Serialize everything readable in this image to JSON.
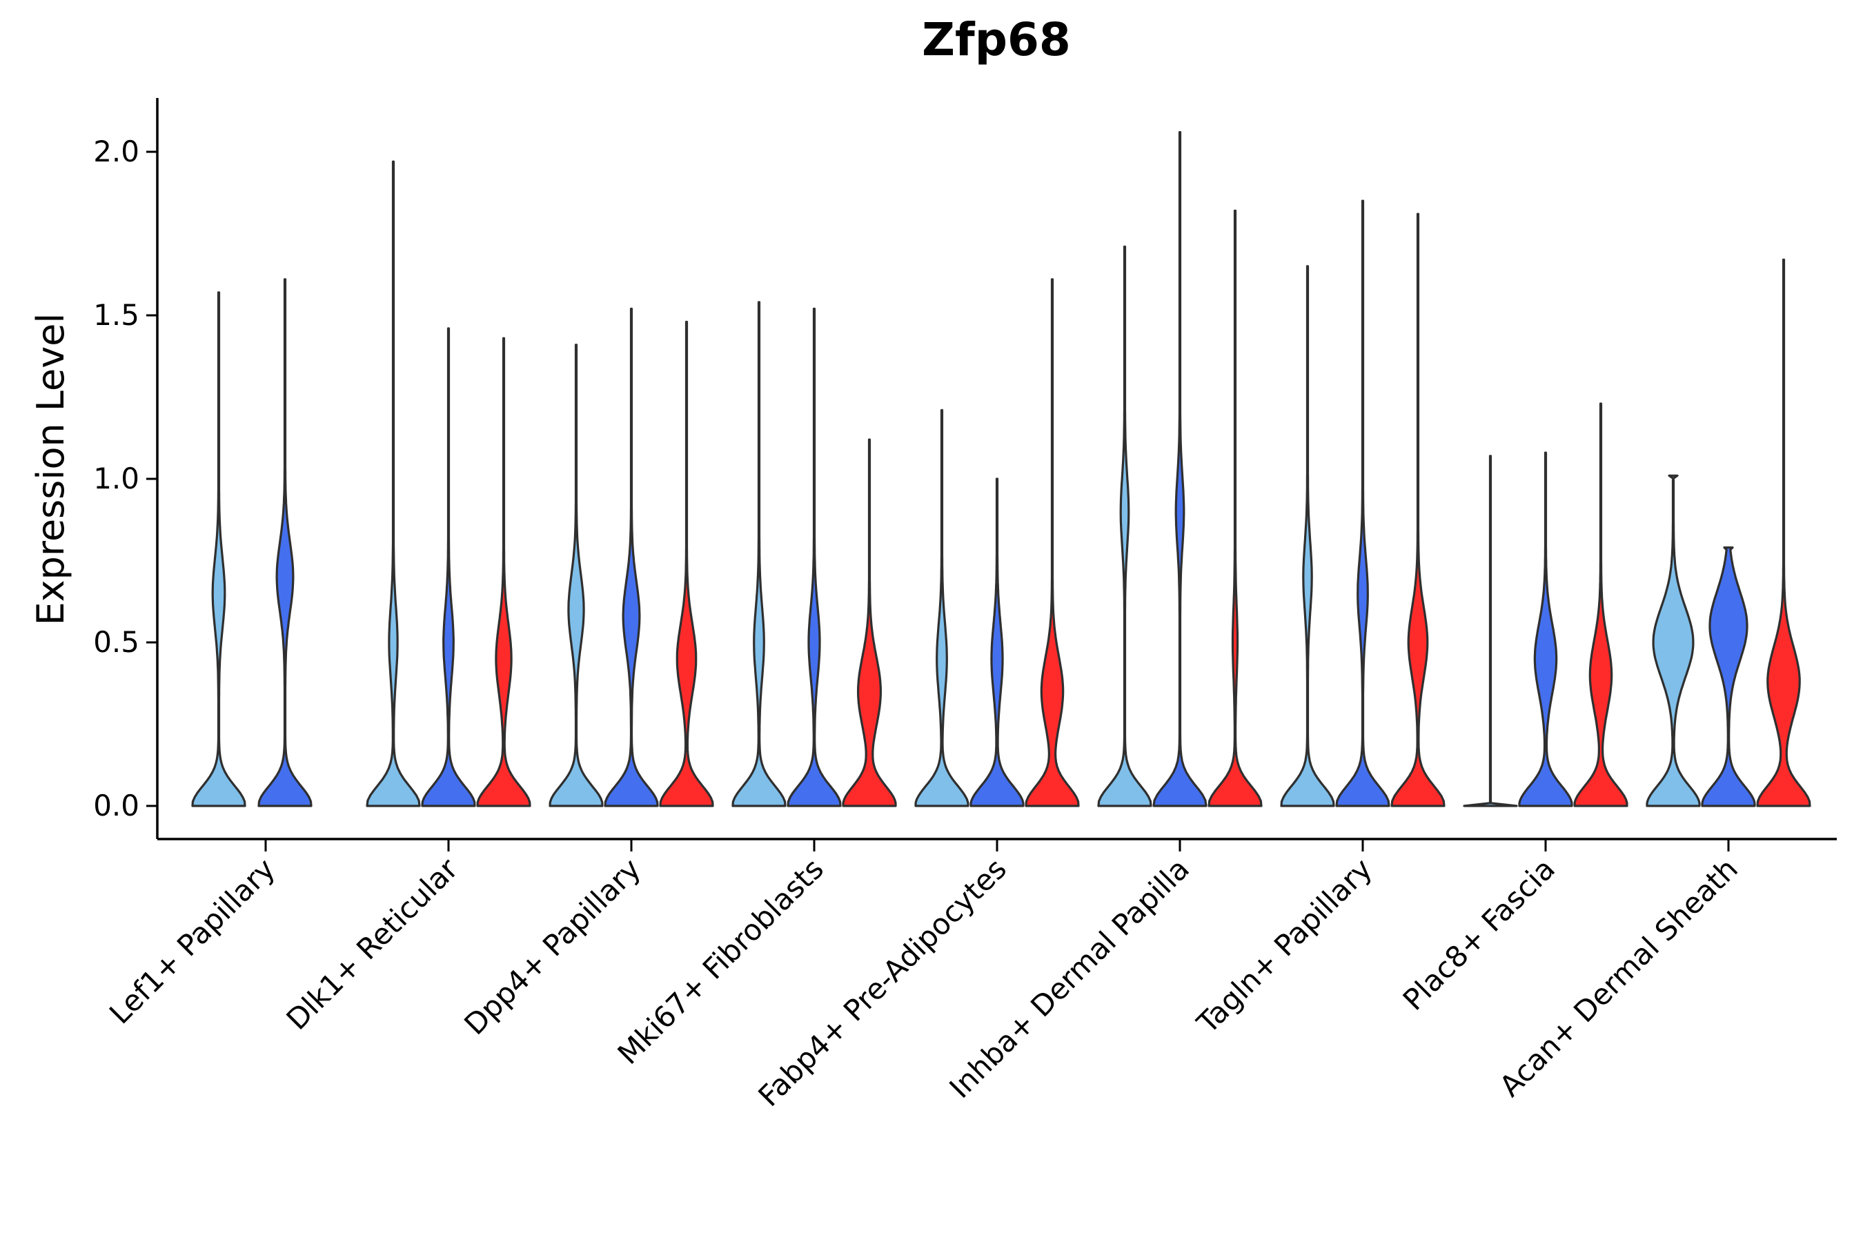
{
  "chart_data": {
    "type": "violin",
    "title": "Zfp68",
    "xlabel": "",
    "ylabel": "Expression Level",
    "ylim": [
      -0.1,
      2.17
    ],
    "yticks": [
      0.0,
      0.5,
      1.0,
      1.5,
      2.0
    ],
    "ytick_labels": [
      "0.0",
      "0.5",
      "1.0",
      "1.5",
      "2.0"
    ],
    "series_colors": [
      "#7fbfea",
      "#4470ef",
      "#ff2b2b"
    ],
    "categories": [
      "Lef1+ Papillary",
      "Dlk1+ Reticular",
      "Dpp4+ Papillary",
      "Mki67+ Fibroblasts",
      "Fabp4+ Pre-Adipocytes",
      "Inhba+ Dermal Papilla",
      "Tagln+ Papillary",
      "Plac8+ Fascia",
      "Acan+ Dermal Sheath"
    ],
    "groups": [
      {
        "category": "Lef1+ Papillary",
        "violins": [
          {
            "series": 0,
            "max": 1.57,
            "modes": [
              [
                0.65,
                0.22
              ]
            ]
          },
          {
            "series": 1,
            "max": 1.61,
            "modes": [
              [
                0.7,
                0.3
              ]
            ]
          }
        ]
      },
      {
        "category": "Dlk1+ Reticular",
        "violins": [
          {
            "series": 0,
            "max": 1.97,
            "modes": [
              [
                0.5,
                0.15
              ]
            ]
          },
          {
            "series": 1,
            "max": 1.46,
            "modes": [
              [
                0.5,
                0.18
              ]
            ]
          },
          {
            "series": 2,
            "max": 1.43,
            "modes": [
              [
                0.45,
                0.28
              ]
            ]
          }
        ]
      },
      {
        "category": "Dpp4+ Papillary",
        "violins": [
          {
            "series": 0,
            "max": 1.41,
            "modes": [
              [
                0.6,
                0.28
              ]
            ]
          },
          {
            "series": 1,
            "max": 1.52,
            "modes": [
              [
                0.58,
                0.3
              ]
            ]
          },
          {
            "series": 2,
            "max": 1.48,
            "modes": [
              [
                0.45,
                0.35
              ]
            ]
          }
        ]
      },
      {
        "category": "Mki67+ Fibroblasts",
        "violins": [
          {
            "series": 0,
            "max": 1.54,
            "modes": [
              [
                0.5,
                0.18
              ]
            ]
          },
          {
            "series": 1,
            "max": 1.52,
            "modes": [
              [
                0.5,
                0.2
              ]
            ]
          },
          {
            "series": 2,
            "max": 1.12,
            "modes": [
              [
                0.35,
                0.42
              ]
            ]
          }
        ]
      },
      {
        "category": "Fabp4+ Pre-Adipocytes",
        "violins": [
          {
            "series": 0,
            "max": 1.21,
            "modes": [
              [
                0.45,
                0.18
              ]
            ]
          },
          {
            "series": 1,
            "max": 1.0,
            "modes": [
              [
                0.45,
                0.2
              ]
            ]
          },
          {
            "series": 2,
            "max": 1.61,
            "modes": [
              [
                0.35,
                0.4
              ]
            ]
          }
        ]
      },
      {
        "category": "Inhba+ Dermal Papilla",
        "violins": [
          {
            "series": 0,
            "max": 1.71,
            "modes": [
              [
                0.9,
                0.14
              ]
            ]
          },
          {
            "series": 1,
            "max": 2.06,
            "modes": [
              [
                0.9,
                0.14
              ]
            ]
          },
          {
            "series": 2,
            "max": 1.82,
            "modes": [
              [
                0.5,
                0.08
              ]
            ]
          }
        ]
      },
      {
        "category": "Tagln+ Papillary",
        "violins": [
          {
            "series": 0,
            "max": 1.65,
            "modes": [
              [
                0.7,
                0.15
              ]
            ]
          },
          {
            "series": 1,
            "max": 1.85,
            "modes": [
              [
                0.65,
                0.18
              ]
            ]
          },
          {
            "series": 2,
            "max": 1.81,
            "modes": [
              [
                0.5,
                0.35
              ]
            ]
          }
        ]
      },
      {
        "category": "Plac8+ Fascia",
        "violins": [
          {
            "series": 0,
            "max": 1.07,
            "modes": [],
            "flat": true
          },
          {
            "series": 1,
            "max": 1.08,
            "modes": [
              [
                0.45,
                0.4
              ]
            ]
          },
          {
            "series": 2,
            "max": 1.23,
            "modes": [
              [
                0.4,
                0.4
              ]
            ]
          }
        ]
      },
      {
        "category": "Acan+ Dermal Sheath",
        "violins": [
          {
            "series": 0,
            "max": 1.01,
            "modes": [
              [
                0.5,
                0.75
              ]
            ],
            "truncated": true
          },
          {
            "series": 1,
            "max": 0.79,
            "modes": [
              [
                0.55,
                0.7
              ]
            ],
            "truncated": true
          },
          {
            "series": 2,
            "max": 1.67,
            "modes": [
              [
                0.38,
                0.6
              ]
            ]
          }
        ]
      }
    ]
  }
}
